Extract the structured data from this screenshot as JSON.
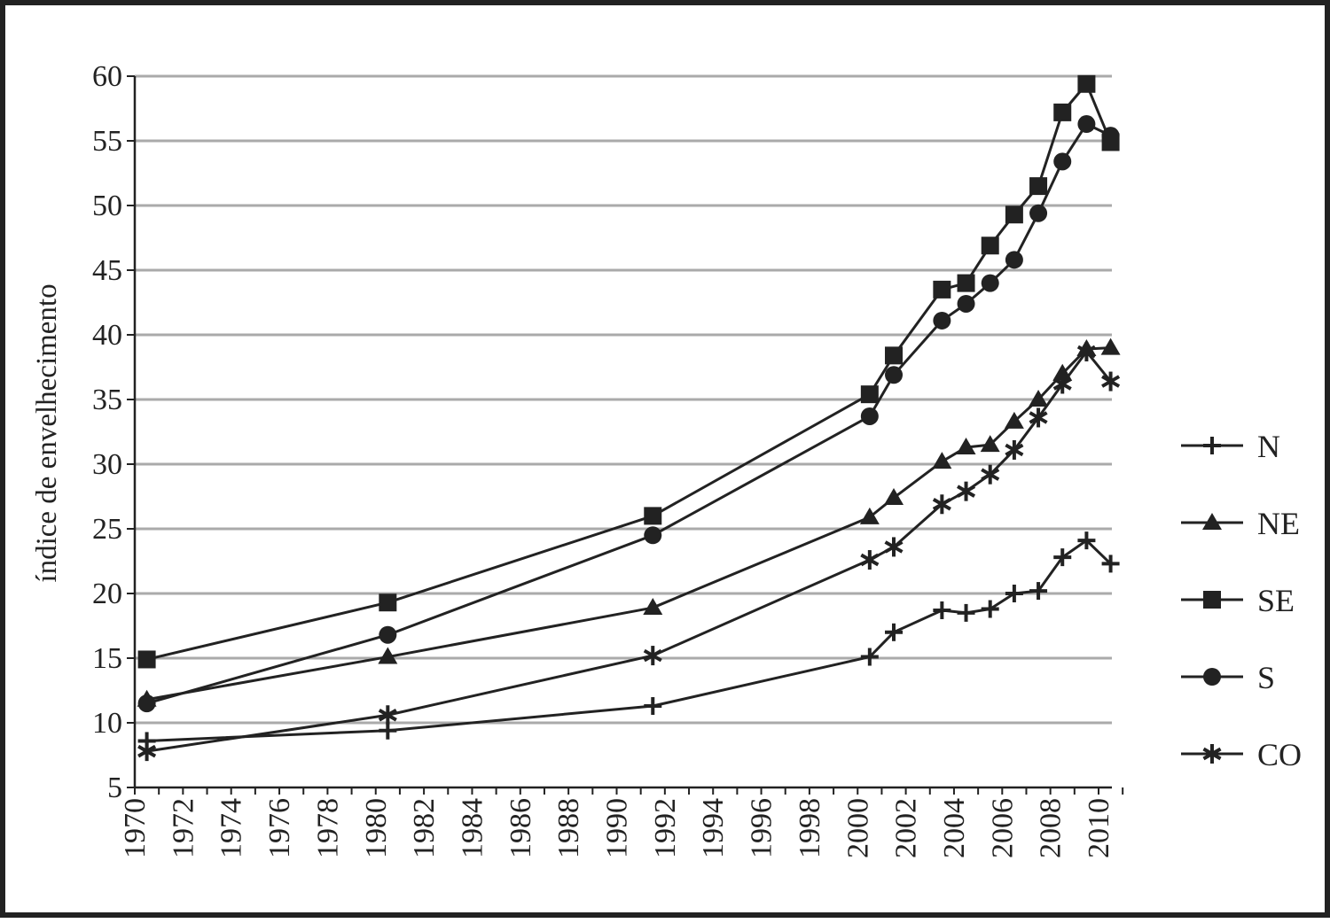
{
  "chart_data": {
    "type": "line",
    "title": "",
    "xlabel": "",
    "ylabel": "índice de envelhecimento",
    "xlim": [
      1970,
      2011
    ],
    "ylim": [
      5,
      60
    ],
    "x_ticks": [
      1970,
      1972,
      1974,
      1976,
      1978,
      1980,
      1982,
      1984,
      1986,
      1988,
      1990,
      1992,
      1994,
      1996,
      1998,
      2000,
      2002,
      2004,
      2006,
      2008,
      2010
    ],
    "y_ticks": [
      5,
      10,
      15,
      20,
      25,
      30,
      35,
      40,
      45,
      50,
      55,
      60
    ],
    "grid": "horizontal",
    "legend_position": "right",
    "colors": {
      "line": "#222222",
      "grid": "#aaaaaa",
      "axis": "#222222"
    },
    "series": [
      {
        "name": "N",
        "marker": "plus",
        "points": [
          [
            1970.5,
            8.6
          ],
          [
            1980.5,
            9.4
          ],
          [
            1991.5,
            11.3
          ],
          [
            2000.5,
            15.1
          ],
          [
            2001.5,
            17.0
          ],
          [
            2003.5,
            18.7
          ],
          [
            2004.5,
            18.5
          ],
          [
            2005.5,
            18.8
          ],
          [
            2006.5,
            20.0
          ],
          [
            2007.5,
            20.2
          ],
          [
            2008.5,
            22.8
          ],
          [
            2009.5,
            24.1
          ],
          [
            2010.5,
            22.3
          ]
        ]
      },
      {
        "name": "NE",
        "marker": "triangle",
        "points": [
          [
            1970.5,
            11.8
          ],
          [
            1980.5,
            15.1
          ],
          [
            1991.5,
            18.9
          ],
          [
            2000.5,
            25.9
          ],
          [
            2001.5,
            27.4
          ],
          [
            2003.5,
            30.2
          ],
          [
            2004.5,
            31.3
          ],
          [
            2005.5,
            31.5
          ],
          [
            2006.5,
            33.3
          ],
          [
            2007.5,
            35.0
          ],
          [
            2008.5,
            37.0
          ],
          [
            2009.5,
            38.9
          ],
          [
            2010.5,
            39.0
          ]
        ]
      },
      {
        "name": "SE",
        "marker": "square",
        "points": [
          [
            1970.5,
            14.9
          ],
          [
            1980.5,
            19.3
          ],
          [
            1991.5,
            26.0
          ],
          [
            2000.5,
            35.4
          ],
          [
            2001.5,
            38.4
          ],
          [
            2003.5,
            43.5
          ],
          [
            2004.5,
            44.0
          ],
          [
            2005.5,
            46.9
          ],
          [
            2006.5,
            49.3
          ],
          [
            2007.5,
            51.5
          ],
          [
            2008.5,
            57.2
          ],
          [
            2009.5,
            59.4
          ],
          [
            2010.5,
            54.9
          ]
        ]
      },
      {
        "name": "S",
        "marker": "circle",
        "points": [
          [
            1970.5,
            11.5
          ],
          [
            1980.5,
            16.8
          ],
          [
            1991.5,
            24.5
          ],
          [
            2000.5,
            33.7
          ],
          [
            2001.5,
            36.9
          ],
          [
            2003.5,
            41.1
          ],
          [
            2004.5,
            42.4
          ],
          [
            2005.5,
            44.0
          ],
          [
            2006.5,
            45.8
          ],
          [
            2007.5,
            49.4
          ],
          [
            2008.5,
            53.4
          ],
          [
            2009.5,
            56.3
          ],
          [
            2010.5,
            55.4
          ]
        ]
      },
      {
        "name": "CO",
        "marker": "asterisk",
        "points": [
          [
            1970.5,
            7.8
          ],
          [
            1980.5,
            10.6
          ],
          [
            1991.5,
            15.2
          ],
          [
            2000.5,
            22.6
          ],
          [
            2001.5,
            23.6
          ],
          [
            2003.5,
            26.9
          ],
          [
            2004.5,
            27.9
          ],
          [
            2005.5,
            29.2
          ],
          [
            2006.5,
            31.1
          ],
          [
            2007.5,
            33.6
          ],
          [
            2008.5,
            36.2
          ],
          [
            2009.5,
            38.7
          ],
          [
            2010.5,
            36.4
          ]
        ]
      }
    ]
  }
}
